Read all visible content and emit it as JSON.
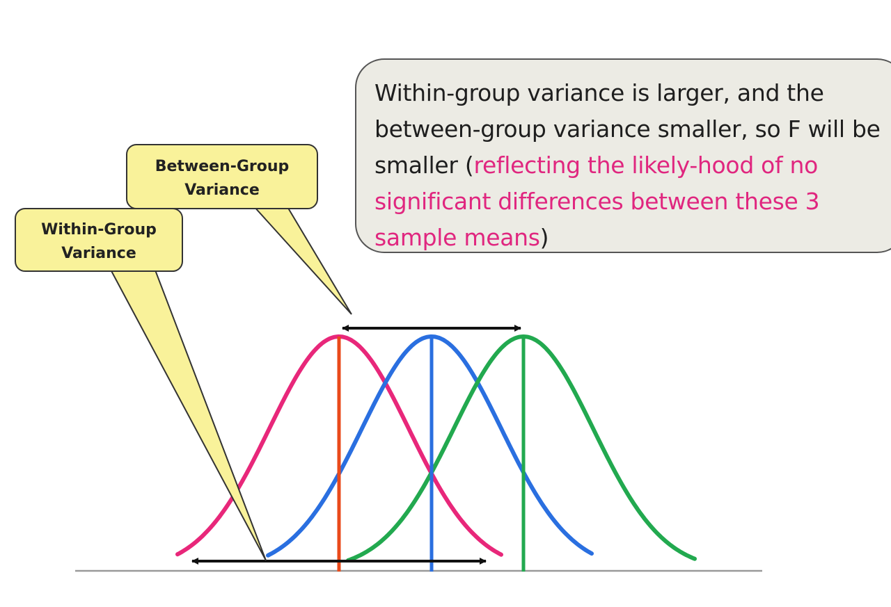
{
  "callouts": {
    "between_group": {
      "line1": "Between-Group",
      "line2": "Variance"
    },
    "within_group": {
      "line1": "Within-Group",
      "line2": "Variance"
    }
  },
  "note": {
    "text_before": "Within-group variance is larger, and the between-group variance smaller, so F will be smaller (",
    "highlight": "reflecting the likely-hood of no significant differences between these 3 sample means",
    "text_after": ")"
  },
  "colors": {
    "curve_1": "#e8277a",
    "curve_2": "#2a6fe0",
    "curve_3": "#22a94f",
    "mean_line_1": "#ea4a1a",
    "mean_line_2": "#2a6fe0",
    "mean_line_3": "#22a94f",
    "callout_fill": "#f9f29a",
    "note_fill": "#ecebe4",
    "note_highlight": "#e0267f",
    "arrows": "#111111",
    "baseline": "#9a9a9a"
  }
}
